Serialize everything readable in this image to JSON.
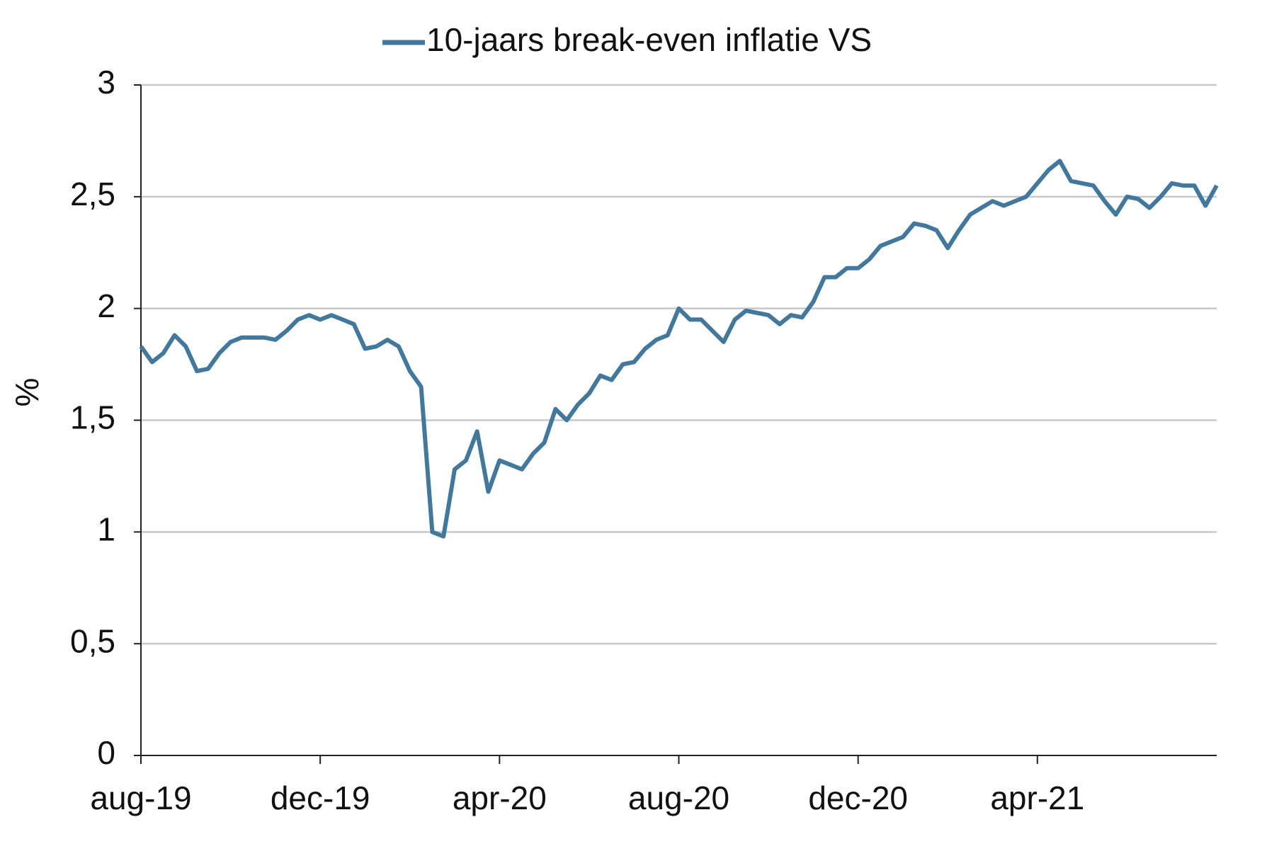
{
  "chart_data": {
    "type": "line",
    "ylabel": "%",
    "categories": [
      "aug-19",
      null,
      null,
      null,
      null,
      null,
      null,
      null,
      null,
      null,
      null,
      null,
      null,
      null,
      null,
      null,
      "dec-19",
      null,
      null,
      null,
      null,
      null,
      null,
      null,
      null,
      null,
      null,
      null,
      null,
      null,
      null,
      null,
      "apr-20",
      null,
      null,
      null,
      null,
      null,
      null,
      null,
      null,
      null,
      null,
      null,
      null,
      null,
      null,
      null,
      "aug-20",
      null,
      null,
      null,
      null,
      null,
      null,
      null,
      null,
      null,
      null,
      null,
      null,
      null,
      null,
      null,
      "dec-20",
      null,
      null,
      null,
      null,
      null,
      null,
      null,
      null,
      null,
      null,
      null,
      null,
      null,
      null,
      null,
      "apr-21",
      null,
      null,
      null,
      null,
      null,
      null,
      null,
      null,
      null,
      null,
      null,
      null,
      null,
      null,
      null,
      null
    ],
    "series": [
      {
        "name": "10-jaars break-even inflatie VS",
        "color": "#41789e",
        "values": [
          1.83,
          1.76,
          1.8,
          1.88,
          1.83,
          1.72,
          1.73,
          1.8,
          1.85,
          1.87,
          1.87,
          1.87,
          1.86,
          1.9,
          1.95,
          1.97,
          1.95,
          1.97,
          1.95,
          1.93,
          1.82,
          1.83,
          1.86,
          1.83,
          1.72,
          1.65,
          1.0,
          0.98,
          1.28,
          1.32,
          1.45,
          1.18,
          1.32,
          1.3,
          1.28,
          1.35,
          1.4,
          1.55,
          1.5,
          1.57,
          1.62,
          1.7,
          1.68,
          1.75,
          1.76,
          1.82,
          1.86,
          1.88,
          2.0,
          1.95,
          1.95,
          1.9,
          1.85,
          1.95,
          1.99,
          1.98,
          1.97,
          1.93,
          1.97,
          1.96,
          2.03,
          2.14,
          2.14,
          2.18,
          2.18,
          2.22,
          2.28,
          2.3,
          2.32,
          2.38,
          2.37,
          2.35,
          2.27,
          2.35,
          2.42,
          2.45,
          2.48,
          2.46,
          2.48,
          2.5,
          2.56,
          2.62,
          2.66,
          2.57,
          2.56,
          2.55,
          2.48,
          2.42,
          2.5,
          2.49,
          2.45,
          2.5,
          2.56,
          2.55,
          2.55,
          2.46,
          2.55
        ]
      }
    ],
    "ylim": [
      0,
      3
    ],
    "yticks": [
      0,
      {
        "value": 0.5,
        "label": "0,5"
      },
      1,
      {
        "value": 1.5,
        "label": "1,5"
      },
      2,
      {
        "value": 2.5,
        "label": "2,5"
      },
      3
    ],
    "grid": true,
    "legend": "top"
  }
}
